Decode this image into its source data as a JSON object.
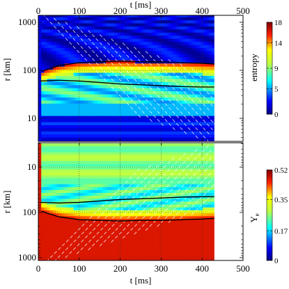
{
  "chart_data": [
    {
      "type": "heatmap",
      "panel": "top",
      "top_axis": {
        "label": "t [ms]",
        "ticks": [
          "0",
          "100",
          "200",
          "300",
          "400",
          "500"
        ]
      },
      "x_range": [
        0,
        500
      ],
      "data_extent_t": [
        0,
        430
      ],
      "y_axis": {
        "label": "r [km]",
        "scale": "log",
        "ticks": [
          "10",
          "100",
          "1000"
        ],
        "range": [
          3,
          1500
        ],
        "direction": "up"
      },
      "colorbar": {
        "label": "entropy",
        "ticks": [
          "0",
          "5",
          "9",
          "14",
          "18"
        ],
        "range": [
          0,
          18
        ]
      },
      "contours": [
        {
          "name": "shock",
          "color": "#000000",
          "values": [
            [
              8,
              95
            ],
            [
              50,
              125
            ],
            [
              100,
              145
            ],
            [
              150,
              150
            ],
            [
              200,
              155
            ],
            [
              250,
              150
            ],
            [
              300,
              150
            ],
            [
              350,
              145
            ],
            [
              400,
              140
            ],
            [
              430,
              135
            ]
          ]
        },
        {
          "name": "gain",
          "color": "#000000",
          "values": [
            [
              5,
              60
            ],
            [
              50,
              62
            ],
            [
              100,
              60
            ],
            [
              150,
              56
            ],
            [
              200,
              52
            ],
            [
              250,
              50
            ],
            [
              300,
              48
            ],
            [
              350,
              46
            ],
            [
              400,
              45
            ],
            [
              430,
              45
            ]
          ]
        }
      ],
      "grid": true
    },
    {
      "type": "heatmap",
      "panel": "bottom",
      "x_axis": {
        "label": "t [ms]",
        "ticks": [
          "0",
          "100",
          "200",
          "300",
          "400",
          "500"
        ]
      },
      "x_range": [
        0,
        500
      ],
      "data_extent_t": [
        0,
        430
      ],
      "y_axis": {
        "label": "r [km]",
        "scale": "log",
        "ticks": [
          "10",
          "100",
          "1000"
        ],
        "range": [
          3,
          1500
        ],
        "direction": "down"
      },
      "colorbar": {
        "label": "Ye",
        "ticks": [
          "0",
          "0.17",
          "0.35",
          "0.52"
        ],
        "range": [
          0,
          0.52
        ]
      },
      "contours": [
        {
          "name": "shock",
          "color": "#000000",
          "values": [
            [
              8,
              95
            ],
            [
              50,
              125
            ],
            [
              100,
              145
            ],
            [
              150,
              150
            ],
            [
              200,
              155
            ],
            [
              250,
              150
            ],
            [
              300,
              150
            ],
            [
              350,
              145
            ],
            [
              400,
              140
            ],
            [
              430,
              135
            ]
          ]
        },
        {
          "name": "gain",
          "color": "#000000",
          "values": [
            [
              5,
              60
            ],
            [
              50,
              62
            ],
            [
              100,
              60
            ],
            [
              150,
              56
            ],
            [
              200,
              52
            ],
            [
              250,
              50
            ],
            [
              300,
              48
            ],
            [
              350,
              46
            ],
            [
              400,
              45
            ],
            [
              430,
              45
            ]
          ]
        }
      ],
      "grid": true
    }
  ]
}
